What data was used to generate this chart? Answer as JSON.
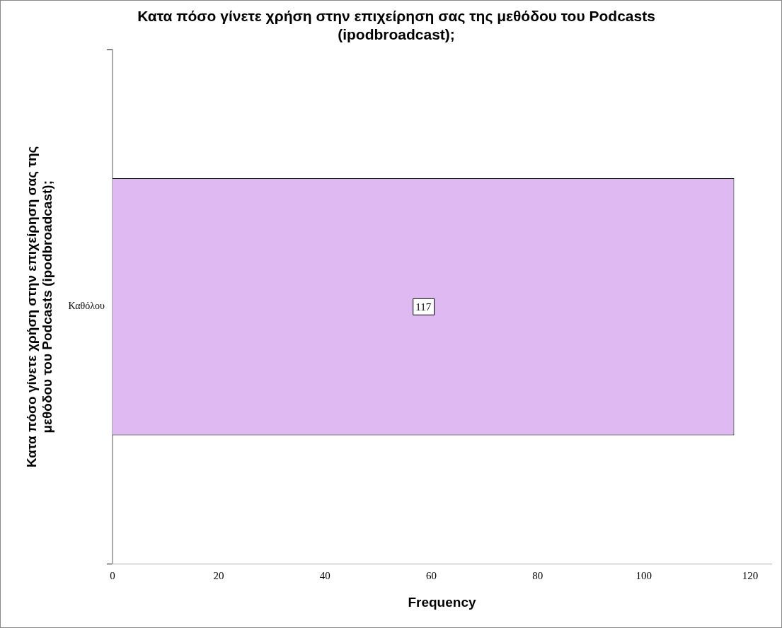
{
  "chart_data": {
    "type": "bar",
    "orientation": "horizontal",
    "title": "Κατα πόσο γίνετε χρήση στην επιχείρηση σας της μεθόδου του Podcasts (ipodbroadcast);",
    "ylabel": "Κατα πόσο γίνετε χρήση στην επιχείρηση σας της μεθόδου του Podcasts (ipodbroadcast);",
    "xlabel": "Frequency",
    "categories": [
      "Καθόλου"
    ],
    "values": [
      117
    ],
    "color": "#dfb9f1",
    "xlim": [
      0,
      124
    ],
    "xticks": [
      0,
      20,
      40,
      60,
      80,
      100,
      120
    ],
    "grid": false,
    "legend": false,
    "data_labels": true
  }
}
